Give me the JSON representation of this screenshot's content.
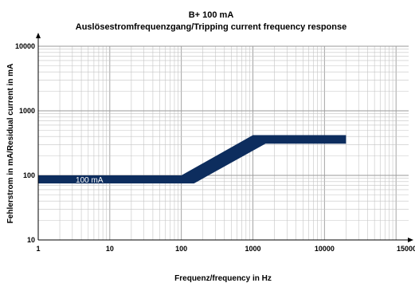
{
  "chart_data": {
    "type": "area",
    "title": "B+ 100 mA",
    "subtitle": "Auslösestromfrequenzgang/Tripping current frequency response",
    "xlabel": "Frequenz/frequency in Hz",
    "ylabel": "Fehlerstrom in mA/Residual current in mA",
    "xscale": "log",
    "yscale": "log",
    "xlim": [
      1,
      150000
    ],
    "ylim": [
      10,
      10000
    ],
    "x_ticks": [
      "1",
      "10",
      "100",
      "1000",
      "10000",
      "150000"
    ],
    "y_ticks": [
      "10",
      "100",
      "1000",
      "10000"
    ],
    "grid": true,
    "band_label": "100 mA",
    "color": "#0d2d5e",
    "series": [
      {
        "upper": [
          [
            1,
            100
          ],
          [
            100,
            100
          ],
          [
            1000,
            420
          ],
          [
            20000,
            420
          ]
        ],
        "lower": [
          [
            1,
            75
          ],
          [
            150,
            75
          ],
          [
            1500,
            310
          ],
          [
            20000,
            310
          ]
        ]
      }
    ]
  }
}
